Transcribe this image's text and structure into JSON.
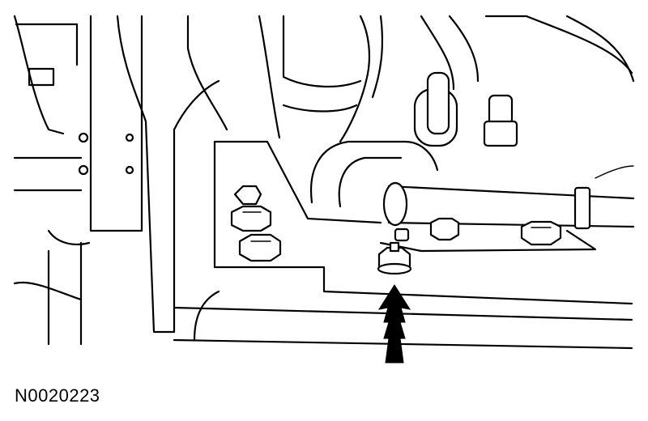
{
  "figure": {
    "code": "N0020223",
    "colors": {
      "line": "#000000",
      "background": "#ffffff"
    }
  }
}
